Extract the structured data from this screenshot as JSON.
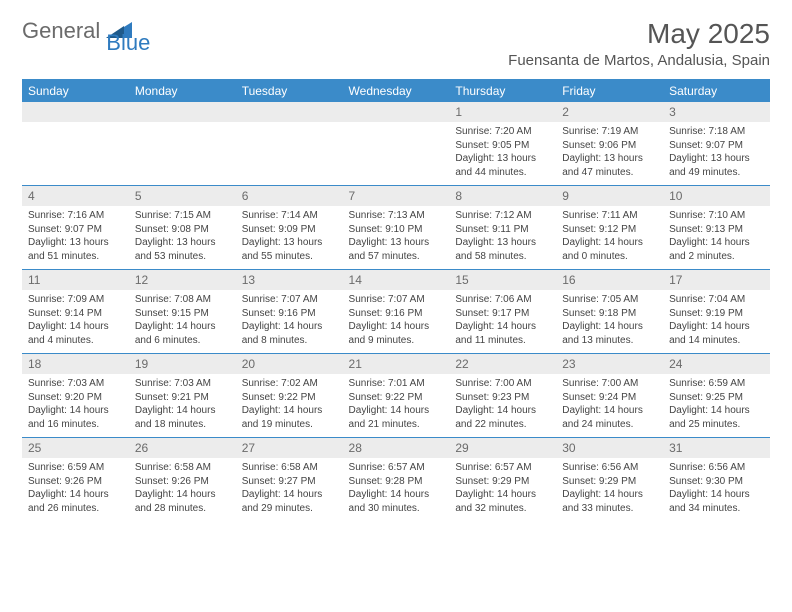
{
  "logo": {
    "text1": "General",
    "text2": "Blue"
  },
  "title": "May 2025",
  "location": "Fuensanta de Martos, Andalusia, Spain",
  "colors": {
    "header_bg": "#3b8bc9",
    "header_text": "#ffffff",
    "daynum_bg": "#ececec",
    "daynum_text": "#6b6b6b",
    "border": "#3b8bc9",
    "body_text": "#444444"
  },
  "day_headers": [
    "Sunday",
    "Monday",
    "Tuesday",
    "Wednesday",
    "Thursday",
    "Friday",
    "Saturday"
  ],
  "leading_blank": 4,
  "days": [
    {
      "n": "1",
      "sr": "7:20 AM",
      "ss": "9:05 PM",
      "dl": "13 hours and 44 minutes."
    },
    {
      "n": "2",
      "sr": "7:19 AM",
      "ss": "9:06 PM",
      "dl": "13 hours and 47 minutes."
    },
    {
      "n": "3",
      "sr": "7:18 AM",
      "ss": "9:07 PM",
      "dl": "13 hours and 49 minutes."
    },
    {
      "n": "4",
      "sr": "7:16 AM",
      "ss": "9:07 PM",
      "dl": "13 hours and 51 minutes."
    },
    {
      "n": "5",
      "sr": "7:15 AM",
      "ss": "9:08 PM",
      "dl": "13 hours and 53 minutes."
    },
    {
      "n": "6",
      "sr": "7:14 AM",
      "ss": "9:09 PM",
      "dl": "13 hours and 55 minutes."
    },
    {
      "n": "7",
      "sr": "7:13 AM",
      "ss": "9:10 PM",
      "dl": "13 hours and 57 minutes."
    },
    {
      "n": "8",
      "sr": "7:12 AM",
      "ss": "9:11 PM",
      "dl": "13 hours and 58 minutes."
    },
    {
      "n": "9",
      "sr": "7:11 AM",
      "ss": "9:12 PM",
      "dl": "14 hours and 0 minutes."
    },
    {
      "n": "10",
      "sr": "7:10 AM",
      "ss": "9:13 PM",
      "dl": "14 hours and 2 minutes."
    },
    {
      "n": "11",
      "sr": "7:09 AM",
      "ss": "9:14 PM",
      "dl": "14 hours and 4 minutes."
    },
    {
      "n": "12",
      "sr": "7:08 AM",
      "ss": "9:15 PM",
      "dl": "14 hours and 6 minutes."
    },
    {
      "n": "13",
      "sr": "7:07 AM",
      "ss": "9:16 PM",
      "dl": "14 hours and 8 minutes."
    },
    {
      "n": "14",
      "sr": "7:07 AM",
      "ss": "9:16 PM",
      "dl": "14 hours and 9 minutes."
    },
    {
      "n": "15",
      "sr": "7:06 AM",
      "ss": "9:17 PM",
      "dl": "14 hours and 11 minutes."
    },
    {
      "n": "16",
      "sr": "7:05 AM",
      "ss": "9:18 PM",
      "dl": "14 hours and 13 minutes."
    },
    {
      "n": "17",
      "sr": "7:04 AM",
      "ss": "9:19 PM",
      "dl": "14 hours and 14 minutes."
    },
    {
      "n": "18",
      "sr": "7:03 AM",
      "ss": "9:20 PM",
      "dl": "14 hours and 16 minutes."
    },
    {
      "n": "19",
      "sr": "7:03 AM",
      "ss": "9:21 PM",
      "dl": "14 hours and 18 minutes."
    },
    {
      "n": "20",
      "sr": "7:02 AM",
      "ss": "9:22 PM",
      "dl": "14 hours and 19 minutes."
    },
    {
      "n": "21",
      "sr": "7:01 AM",
      "ss": "9:22 PM",
      "dl": "14 hours and 21 minutes."
    },
    {
      "n": "22",
      "sr": "7:00 AM",
      "ss": "9:23 PM",
      "dl": "14 hours and 22 minutes."
    },
    {
      "n": "23",
      "sr": "7:00 AM",
      "ss": "9:24 PM",
      "dl": "14 hours and 24 minutes."
    },
    {
      "n": "24",
      "sr": "6:59 AM",
      "ss": "9:25 PM",
      "dl": "14 hours and 25 minutes."
    },
    {
      "n": "25",
      "sr": "6:59 AM",
      "ss": "9:26 PM",
      "dl": "14 hours and 26 minutes."
    },
    {
      "n": "26",
      "sr": "6:58 AM",
      "ss": "9:26 PM",
      "dl": "14 hours and 28 minutes."
    },
    {
      "n": "27",
      "sr": "6:58 AM",
      "ss": "9:27 PM",
      "dl": "14 hours and 29 minutes."
    },
    {
      "n": "28",
      "sr": "6:57 AM",
      "ss": "9:28 PM",
      "dl": "14 hours and 30 minutes."
    },
    {
      "n": "29",
      "sr": "6:57 AM",
      "ss": "9:29 PM",
      "dl": "14 hours and 32 minutes."
    },
    {
      "n": "30",
      "sr": "6:56 AM",
      "ss": "9:29 PM",
      "dl": "14 hours and 33 minutes."
    },
    {
      "n": "31",
      "sr": "6:56 AM",
      "ss": "9:30 PM",
      "dl": "14 hours and 34 minutes."
    }
  ],
  "labels": {
    "sunrise": "Sunrise: ",
    "sunset": "Sunset: ",
    "daylight": "Daylight: "
  }
}
